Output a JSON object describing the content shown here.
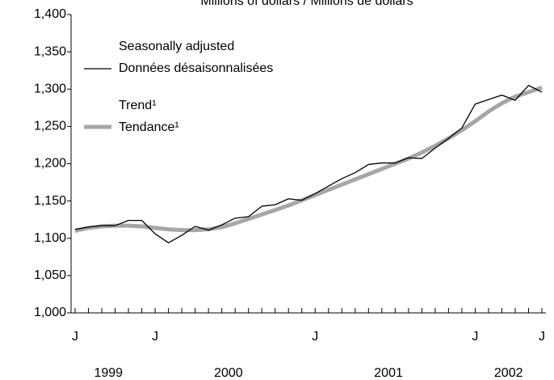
{
  "chart_data": {
    "type": "line",
    "subtitle": "Millions of dollars / Millions de dollars",
    "groups": [
      {
        "label": "1999",
        "categories": [
          "J",
          null,
          null,
          null,
          null,
          null
        ]
      },
      {
        "label": "2000",
        "categories": [
          "J",
          null,
          null,
          null,
          null,
          null,
          null,
          null,
          null,
          null,
          null,
          null
        ]
      },
      {
        "label": "2001",
        "categories": [
          "J",
          null,
          null,
          null,
          null,
          null,
          null,
          null,
          null,
          null,
          null,
          null
        ]
      },
      {
        "label": "2002",
        "categories": [
          "J",
          null,
          null,
          null,
          null,
          "J"
        ]
      }
    ],
    "series": [
      {
        "name": [
          "Seasonally adjusted",
          "Données désaisonnalisées"
        ],
        "color": "#000000",
        "values": [
          1112,
          1115,
          1117,
          1117,
          1124,
          1124,
          1106,
          1094,
          1104,
          1116,
          1111,
          1118,
          1127,
          1129,
          1143,
          1145,
          1153,
          1151,
          1160,
          1170,
          1180,
          1188,
          1199,
          1201,
          1201,
          1208,
          1207,
          1221,
          1234,
          1248,
          1280,
          1286,
          1292,
          1285,
          1305,
          1296
        ]
      },
      {
        "name": [
          "Trend¹",
          "Tendance¹"
        ],
        "color": "#a6a6a6",
        "values": [
          1110,
          1114,
          1116,
          1117,
          1117,
          1116,
          1114,
          1112,
          1111,
          1111,
          1112,
          1115,
          1120,
          1126,
          1132,
          1138,
          1144,
          1151,
          1158,
          1165,
          1172,
          1179,
          1186,
          1193,
          1200,
          1207,
          1215,
          1224,
          1234,
          1245,
          1257,
          1270,
          1281,
          1290,
          1296,
          1302
        ]
      }
    ],
    "ylim": [
      1000,
      1400
    ],
    "yticks": [
      {
        "value": 1000,
        "label": "1,000"
      },
      {
        "value": 1050,
        "label": "1,050"
      },
      {
        "value": 1100,
        "label": "1,100"
      },
      {
        "value": 1150,
        "label": "1,150"
      },
      {
        "value": 1200,
        "label": "1,200"
      },
      {
        "value": 1250,
        "label": "1,250"
      },
      {
        "value": 1300,
        "label": "1,300"
      },
      {
        "value": 1350,
        "label": "1,350"
      },
      {
        "value": 1400,
        "label": "1,400"
      }
    ],
    "grid": false
  }
}
